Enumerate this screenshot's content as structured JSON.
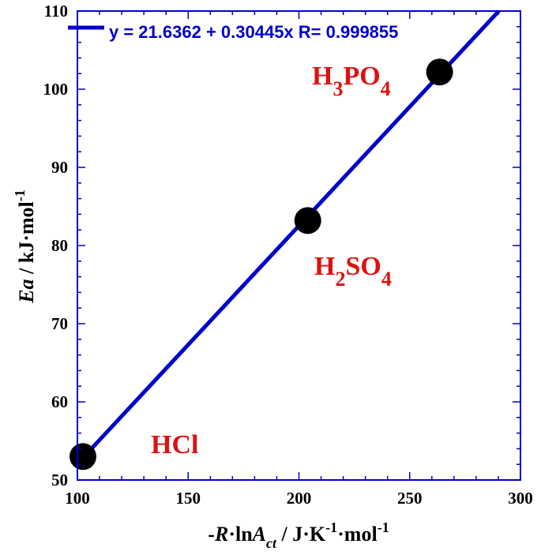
{
  "chart_data": {
    "type": "scatter",
    "xlabel": {
      "prefix": "-",
      "R": "R",
      "dot_ln": "·ln",
      "A": "A",
      "sub": "ct",
      "unit": " / J·K",
      "exp1": "-1",
      "mid": "·mol",
      "exp2": "-1"
    },
    "ylabel": {
      "italic": "Ea",
      "unit": " / kJ·mol",
      "exp": "-1"
    },
    "xlim": [
      100,
      300
    ],
    "ylim": [
      50,
      110
    ],
    "x_ticks": [
      100,
      150,
      200,
      250,
      300
    ],
    "y_ticks": [
      50,
      60,
      70,
      80,
      90,
      100,
      110
    ],
    "grid": false,
    "points": [
      {
        "x": 102.5,
        "y": 53.0
      },
      {
        "x": 204.0,
        "y": 83.2
      },
      {
        "x": 263.5,
        "y": 102.2
      }
    ],
    "fit": {
      "intercept": 21.6362,
      "slope": 0.30445,
      "label": "y = 21.6362 + 0.30445x    R= 0.999855",
      "color": "#0000cc"
    },
    "point_labels": [
      {
        "parts": [
          {
            "t": "HCl"
          }
        ]
      },
      {
        "parts": [
          {
            "t": "H"
          },
          {
            "t": "2",
            "sub": true
          },
          {
            "t": "SO"
          },
          {
            "t": "4",
            "sub": true
          }
        ]
      },
      {
        "parts": [
          {
            "t": "H"
          },
          {
            "t": "3",
            "sub": true
          },
          {
            "t": "PO"
          },
          {
            "t": "4",
            "sub": true
          }
        ]
      }
    ],
    "colors": {
      "frame": "#0000cc",
      "line": "#0000cc",
      "marker": "#000000",
      "label": "#dd1111"
    }
  }
}
